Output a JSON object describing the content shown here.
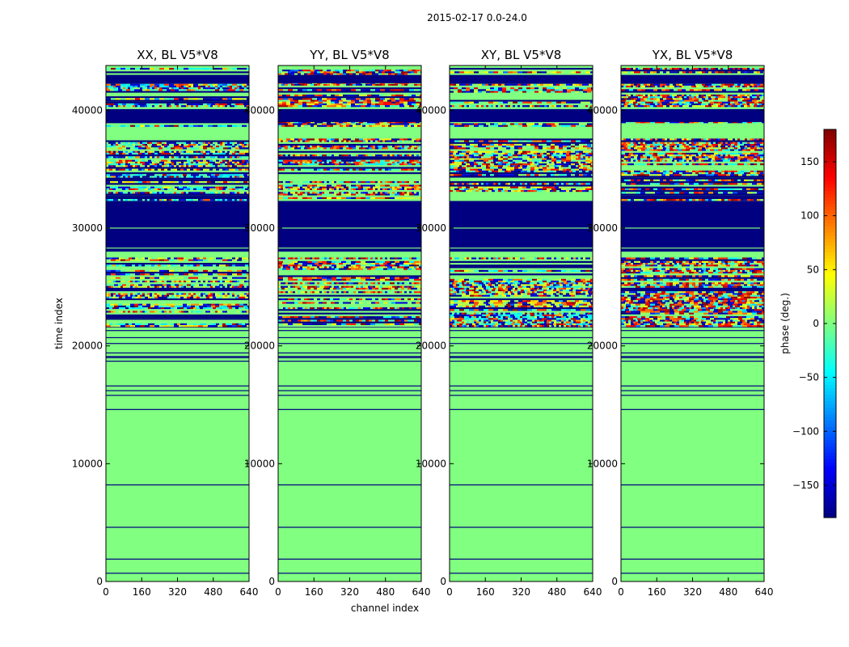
{
  "chart_data": {
    "type": "heatmap",
    "suptitle": "2015-02-17 0.0-24.0",
    "xlabel": "channel index",
    "ylabel": "time index",
    "xlim": [
      0,
      640
    ],
    "ylim": [
      0,
      43800
    ],
    "x_ticks": [
      "0",
      "160",
      "320",
      "480",
      "640"
    ],
    "y_ticks": [
      {
        "value": 0,
        "label": "0"
      },
      {
        "value": 10000,
        "label": "10000"
      },
      {
        "value": 20000,
        "label": "20000"
      },
      {
        "value": 30000,
        "label": "30000"
      },
      {
        "value": 40000,
        "label": "40000"
      }
    ],
    "panels": [
      {
        "title": "XX, BL V5*V8",
        "hot": 0.2
      },
      {
        "title": "YY, BL V5*V8",
        "hot": 0.45
      },
      {
        "title": "XY, BL V5*V8",
        "hot": 0.3
      },
      {
        "title": "YX, BL V5*V8",
        "hot": 0.5
      }
    ],
    "background_phase": 0,
    "dark_bands": [
      {
        "from": 28000,
        "to": 32300
      },
      {
        "from": 39000,
        "to": 40100
      },
      {
        "from": 42300,
        "to": 43000
      }
    ],
    "noisy_regions": [
      {
        "from": 21700,
        "to": 27500
      },
      {
        "from": 32400,
        "to": 37600
      },
      {
        "from": 38600,
        "to": 39200
      },
      {
        "from": 40300,
        "to": 43600
      }
    ],
    "thin_lines": [
      700,
      1900,
      4600,
      8200,
      14600,
      15800,
      16200,
      16600,
      18700,
      19000,
      19100,
      19400,
      20200,
      20700,
      21300,
      21600
    ],
    "colorbar": {
      "label": "phase (deg.)",
      "range": [
        -180,
        180
      ],
      "ticks": [
        "150",
        "100",
        "50",
        "0",
        "−50",
        "−100",
        "−150"
      ],
      "tick_values": [
        150,
        100,
        50,
        0,
        -50,
        -100,
        -150
      ],
      "colormap": "jet"
    }
  }
}
